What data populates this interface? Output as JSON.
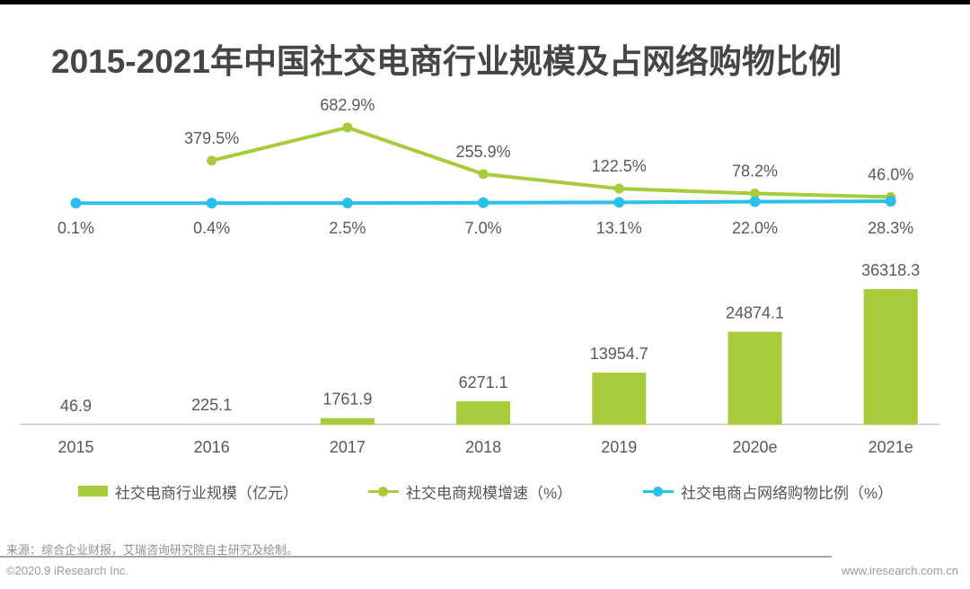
{
  "page": {
    "title": "2015-2021年中国社交电商行业规模及占网络购物比例",
    "source_note": "来源：综合企业财报，艾瑞咨询研究院自主研究及绘制。",
    "footer_left": "©2020.9 iResearch Inc.",
    "footer_right": "www.iresearch.com.cn"
  },
  "colors": {
    "green": "#a7cb3a",
    "blue": "#2bbfec",
    "title_text": "#454545",
    "label_text": "#595959",
    "axis_line": "#c6c6c6",
    "top_bar": "#000000"
  },
  "chart_data": {
    "type": "combo_bar_line",
    "categories": [
      "2015",
      "2016",
      "2017",
      "2018",
      "2019",
      "2020e",
      "2021e"
    ],
    "series": [
      {
        "name": "社交电商行业规模（亿元）",
        "type": "bar",
        "color": "#a7cb3a",
        "values": [
          46.9,
          225.1,
          1761.9,
          6271.1,
          13954.7,
          24874.1,
          36318.3
        ],
        "labels": [
          "46.9",
          "225.1",
          "1761.9",
          "6271.1",
          "13954.7",
          "24874.1",
          "36318.3"
        ]
      },
      {
        "name": "社交电商规模增速（%）",
        "type": "line",
        "color": "#a7cb3a",
        "values": [
          null,
          379.5,
          682.9,
          255.9,
          122.5,
          78.2,
          46.0
        ],
        "labels": [
          "",
          "379.5%",
          "682.9%",
          "255.9%",
          "122.5%",
          "78.2%",
          "46.0%"
        ]
      },
      {
        "name": "社交电商占网络购物比例（%）",
        "type": "line",
        "color": "#2bbfec",
        "values": [
          0.1,
          0.4,
          2.5,
          7.0,
          13.1,
          22.0,
          28.3
        ],
        "labels": [
          "0.1%",
          "0.4%",
          "2.5%",
          "7.0%",
          "13.1%",
          "22.0%",
          "28.3%"
        ]
      }
    ],
    "xlabel": "",
    "ylabel": "",
    "grid": false,
    "value_axis_hidden": true,
    "legend_position": "bottom"
  },
  "legend": {
    "items": [
      {
        "label": "社交电商行业规模（亿元）",
        "swatch": "bar",
        "color": "#a7cb3a"
      },
      {
        "label": "社交电商规模增速（%）",
        "swatch": "line",
        "color": "#a7cb3a"
      },
      {
        "label": "社交电商占网络购物比例（%）",
        "swatch": "line",
        "color": "#2bbfec"
      }
    ]
  }
}
